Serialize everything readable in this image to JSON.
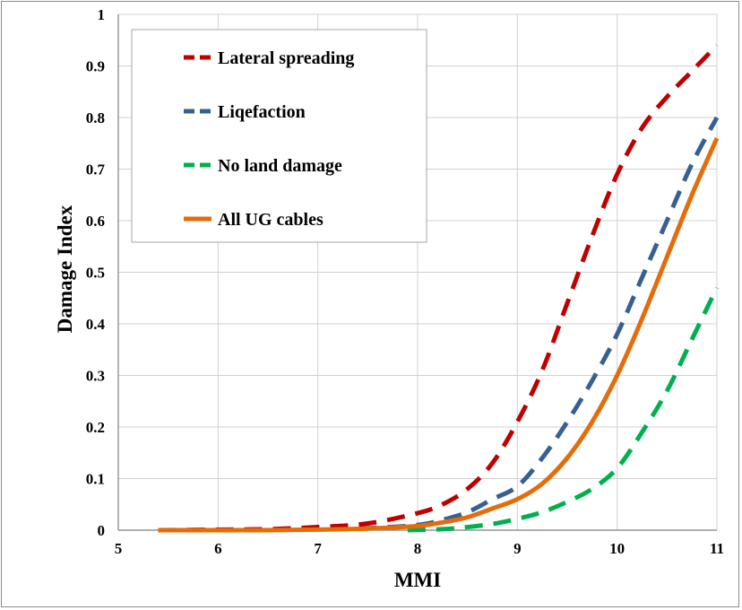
{
  "chart_data": {
    "type": "line",
    "xlabel": "MMI",
    "ylabel": "Damage Index",
    "xlim": [
      5,
      11
    ],
    "ylim": [
      0,
      1
    ],
    "xticks": [
      5,
      6,
      7,
      8,
      9,
      10,
      11
    ],
    "yticks": [
      0,
      0.1,
      0.2,
      0.3,
      0.4,
      0.5,
      0.6,
      0.7,
      0.8,
      0.9,
      1
    ],
    "ytick_labels": [
      "0",
      "0.1",
      "0.2",
      "0.3",
      "0.4",
      "0.5",
      "0.6",
      "0.7",
      "0.8",
      "0.9",
      "1"
    ],
    "xtick_labels": [
      "5",
      "6",
      "7",
      "8",
      "9",
      "10",
      "11"
    ],
    "grid": true,
    "legend_position": "top-left",
    "series": [
      {
        "name": "Lateral spreading",
        "color": "#c00000",
        "style": "dashed",
        "x": [
          5.4,
          6.0,
          6.5,
          7.0,
          7.5,
          8.0,
          8.25,
          8.5,
          8.75,
          9.0,
          9.25,
          9.5,
          9.75,
          10.0,
          10.25,
          10.5,
          10.75,
          11.0
        ],
        "y": [
          0.0,
          0.001,
          0.002,
          0.006,
          0.013,
          0.033,
          0.05,
          0.08,
          0.13,
          0.21,
          0.31,
          0.44,
          0.57,
          0.69,
          0.78,
          0.84,
          0.89,
          0.94
        ]
      },
      {
        "name": "Liqefaction",
        "color": "#376092",
        "style": "dashed",
        "x": [
          5.4,
          6.0,
          6.5,
          7.0,
          7.5,
          8.0,
          8.25,
          8.5,
          8.75,
          9.0,
          9.25,
          9.5,
          9.75,
          10.0,
          10.25,
          10.5,
          10.75,
          11.0
        ],
        "y": [
          0.0,
          0.0,
          0.001,
          0.002,
          0.004,
          0.01,
          0.02,
          0.035,
          0.06,
          0.085,
          0.14,
          0.21,
          0.29,
          0.38,
          0.49,
          0.6,
          0.71,
          0.8
        ]
      },
      {
        "name": "No land damage",
        "color": "#00b050",
        "style": "dashed",
        "x": [
          7.9,
          8.25,
          8.5,
          8.75,
          9.0,
          9.25,
          9.5,
          9.75,
          10.0,
          10.25,
          10.5,
          10.75,
          11.0
        ],
        "y": [
          0.0,
          0.002,
          0.006,
          0.012,
          0.022,
          0.035,
          0.055,
          0.08,
          0.12,
          0.19,
          0.27,
          0.37,
          0.47
        ]
      },
      {
        "name": "All UG cables",
        "color": "#e46c0a",
        "style": "solid",
        "x": [
          5.4,
          6.0,
          6.5,
          7.0,
          7.5,
          8.0,
          8.25,
          8.5,
          8.75,
          9.0,
          9.25,
          9.5,
          9.75,
          10.0,
          10.25,
          10.5,
          10.75,
          11.0
        ],
        "y": [
          0.0,
          0.0,
          0.0,
          0.001,
          0.003,
          0.008,
          0.015,
          0.025,
          0.042,
          0.06,
          0.09,
          0.14,
          0.21,
          0.3,
          0.41,
          0.53,
          0.65,
          0.76
        ]
      }
    ]
  }
}
